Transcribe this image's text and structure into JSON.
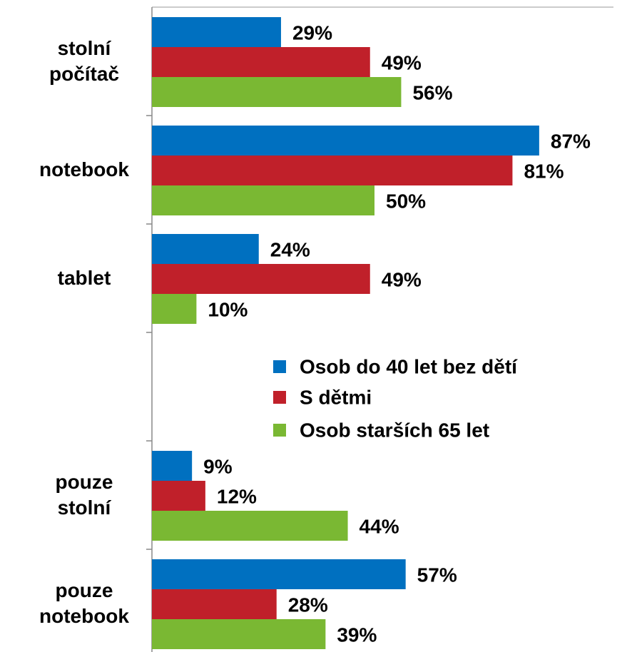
{
  "chart_data": {
    "type": "bar",
    "orientation": "horizontal",
    "categories": [
      "stolní počítač",
      "notebook",
      "tablet",
      null,
      "pouze stolní",
      "pouze notebook"
    ],
    "series": [
      {
        "name": "Osob do 40 let bez dětí",
        "color": "#0070c0",
        "values": [
          29,
          87,
          24,
          null,
          9,
          57
        ],
        "value_labels": [
          "29%",
          "87%",
          "24%",
          null,
          "9%",
          "57%"
        ]
      },
      {
        "name": "S dětmi",
        "color": "#c0202a",
        "values": [
          49,
          81,
          49,
          null,
          12,
          28
        ],
        "value_labels": [
          "49%",
          "81%",
          "49%",
          null,
          "12%",
          "28%"
        ]
      },
      {
        "name": "Osob starších 65 let",
        "color": "#7ab833",
        "values": [
          56,
          50,
          10,
          null,
          44,
          39
        ],
        "value_labels": [
          "56%",
          "50%",
          "10%",
          null,
          "44%",
          "39%"
        ]
      }
    ],
    "xlim": [
      0,
      100
    ]
  }
}
